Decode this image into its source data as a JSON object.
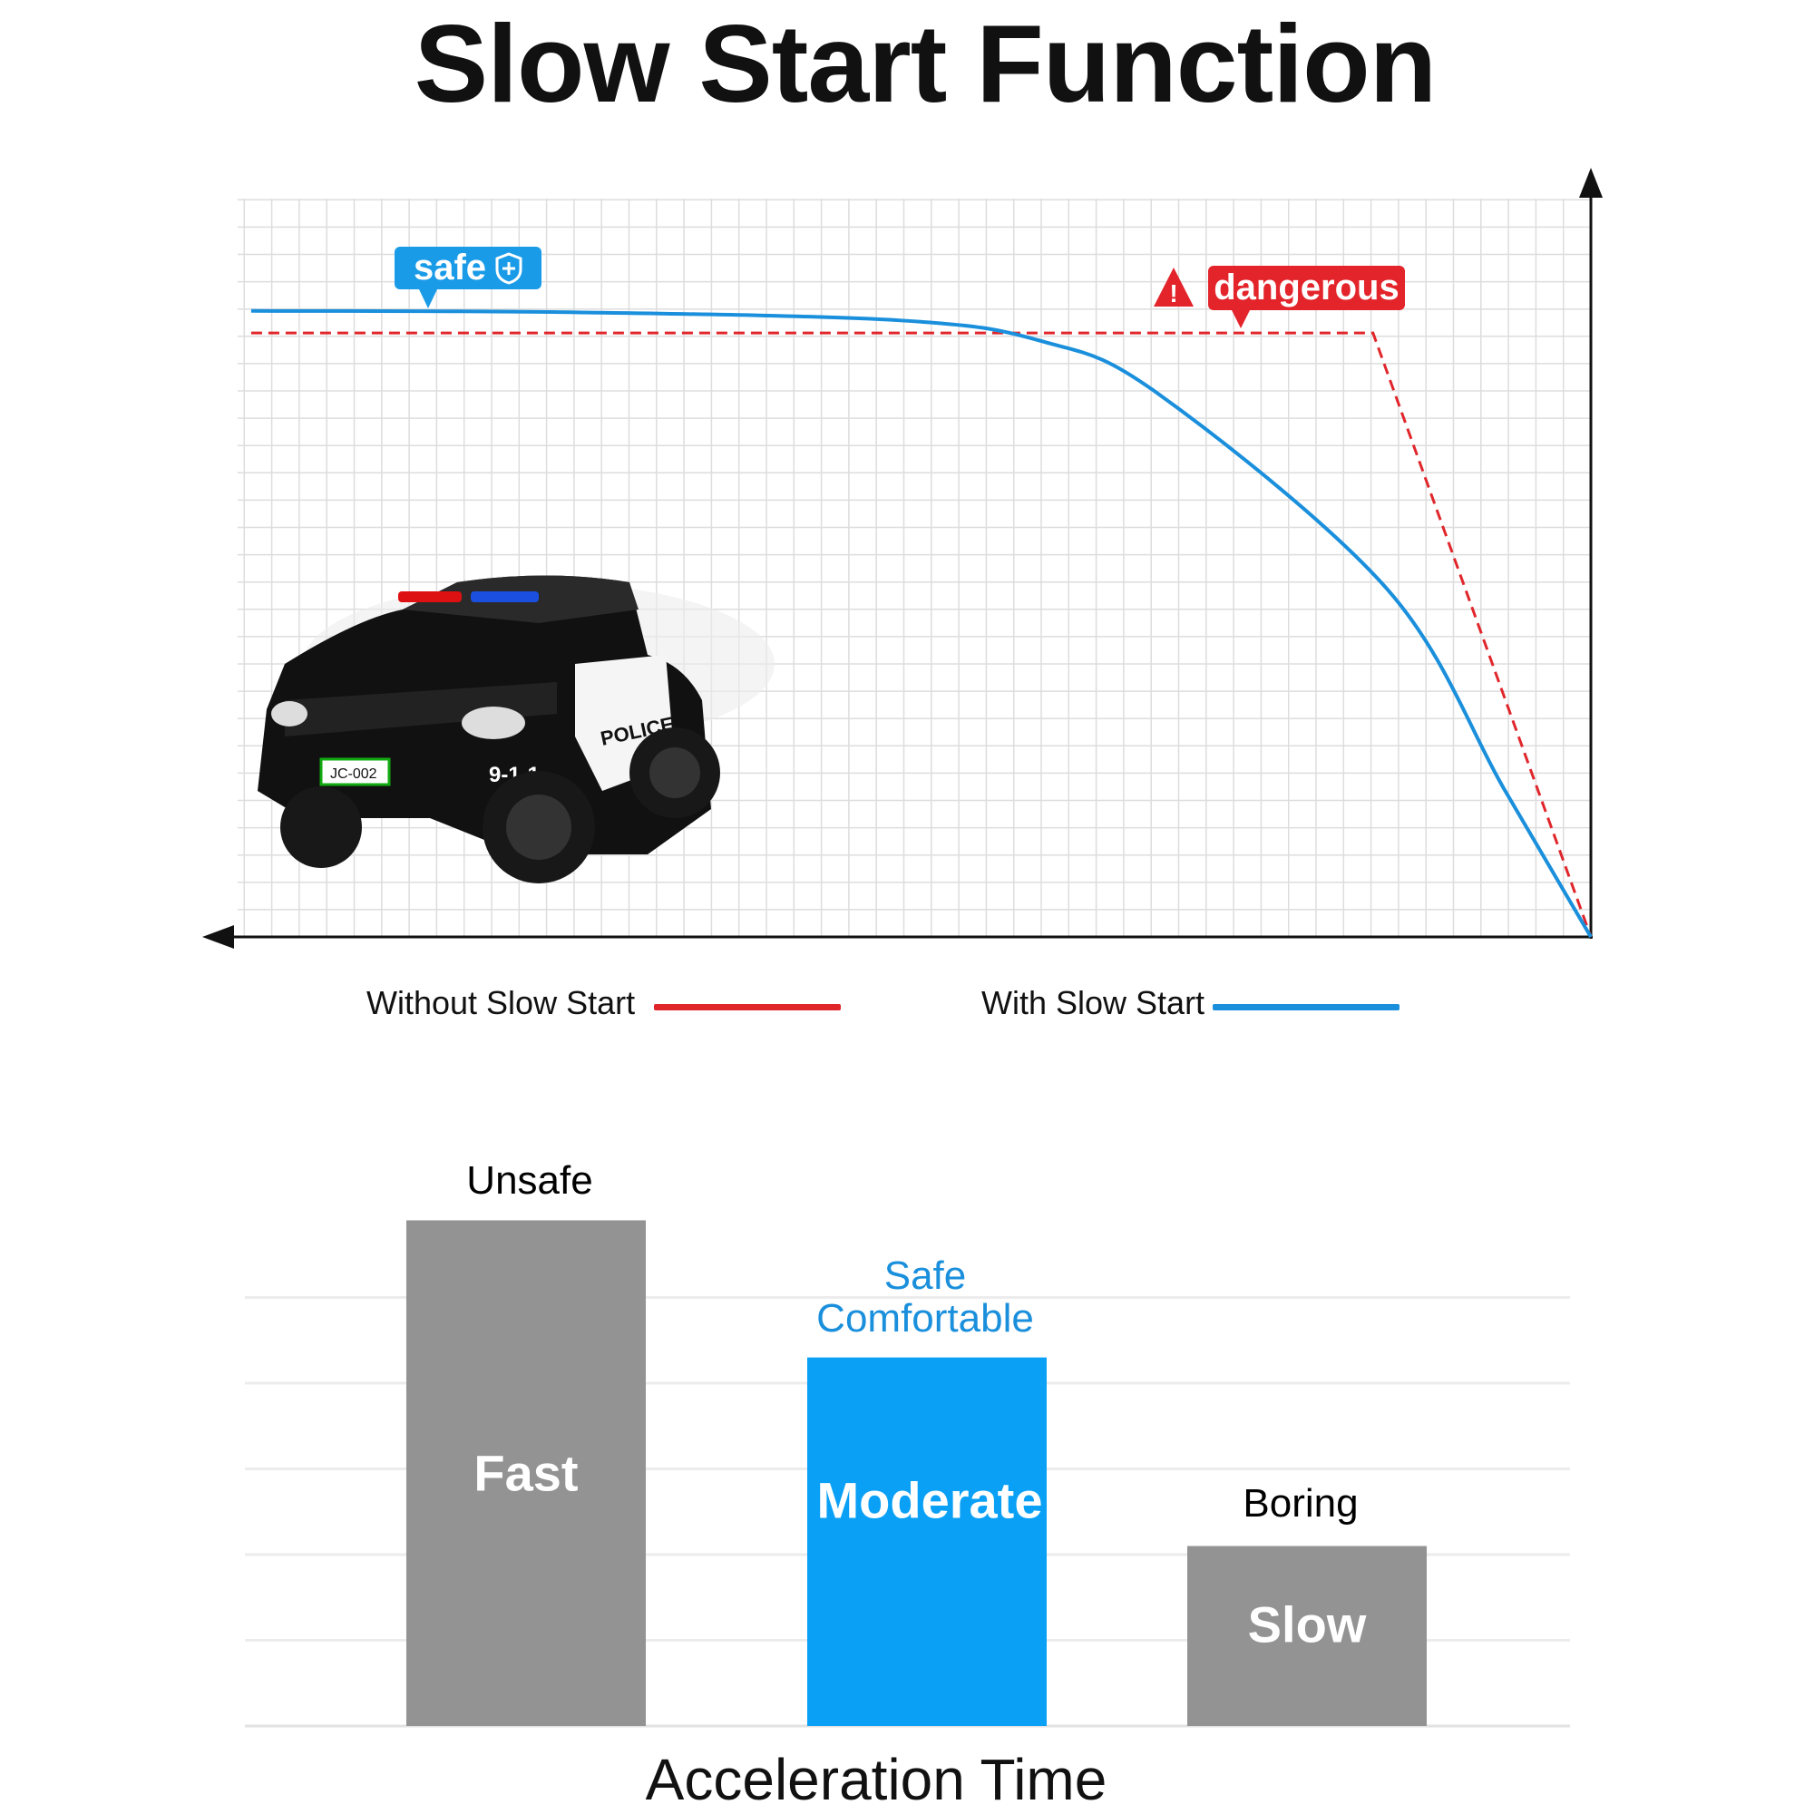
{
  "title": "Slow Start Function",
  "chart_data": [
    {
      "type": "line",
      "title": "",
      "xlabel": "",
      "ylabel": "",
      "x_direction": "right-to-left",
      "grid": true,
      "legend_placement": "bottom",
      "xlim": [
        0,
        100
      ],
      "ylim": [
        0,
        100
      ],
      "series": [
        {
          "name": "Without Slow Start",
          "color": "#e0262b",
          "style": "dashed",
          "x": [
            99,
            16.1,
            0
          ],
          "y": [
            81.8,
            81.8,
            0
          ]
        },
        {
          "name": "With Slow Start",
          "color": "#1a8fdc",
          "style": "solid",
          "x": [
            99,
            75,
            51,
            40.6,
            32,
            15,
            6.4,
            0
          ],
          "y": [
            84.8,
            84.6,
            83.5,
            80.7,
            73.6,
            47,
            20,
            0
          ]
        }
      ],
      "annotations": [
        {
          "text": "safe",
          "color": "#1a9be8",
          "icon": "shield-plus-icon"
        },
        {
          "text": "dangerous",
          "color": "#e3242b",
          "icon": "warning-triangle-icon"
        }
      ]
    },
    {
      "type": "bar",
      "title": "",
      "xlabel": "Acceleration Time",
      "ylabel": "",
      "ylim": [
        0,
        6
      ],
      "grid": true,
      "categories": [
        "Fast",
        "Moderate",
        "Slow"
      ],
      "values": [
        5.9,
        4.3,
        2.1
      ],
      "bar_colors": [
        "#939393",
        "#0aa0f5",
        "#939393"
      ],
      "top_labels": [
        "Unsafe",
        "Safe\nComfortable",
        "Boring"
      ],
      "top_label_lines": [
        [
          "Unsafe"
        ],
        [
          "Safe",
          "Comfortable"
        ],
        [
          "Boring"
        ]
      ],
      "top_label_colors": [
        "#111111",
        "#1a8fdc",
        "#111111"
      ]
    }
  ],
  "image": {
    "subject": "police-ride-on-car",
    "plate": "JC-002",
    "door_text": "POLICE",
    "number": "9-1-1"
  }
}
